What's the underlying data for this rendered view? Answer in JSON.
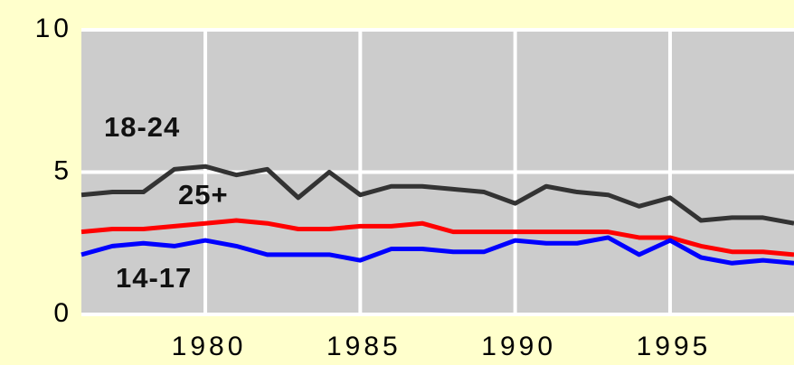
{
  "chart_data": {
    "type": "line",
    "x": [
      1976,
      1977,
      1978,
      1979,
      1980,
      1981,
      1982,
      1983,
      1984,
      1985,
      1986,
      1987,
      1988,
      1989,
      1990,
      1991,
      1992,
      1993,
      1994,
      1995,
      1996,
      1997,
      1998,
      1999
    ],
    "series": [
      {
        "name": "18-24",
        "color": "#333333",
        "values": [
          4.2,
          4.3,
          4.3,
          5.1,
          5.2,
          4.9,
          5.1,
          4.1,
          5.0,
          4.2,
          4.5,
          4.5,
          4.4,
          4.3,
          3.9,
          4.5,
          4.3,
          4.2,
          3.8,
          4.1,
          3.3,
          3.4,
          3.4,
          3.2
        ]
      },
      {
        "name": "25+",
        "color": "#ff0000",
        "values": [
          2.9,
          3.0,
          3.0,
          3.1,
          3.2,
          3.3,
          3.2,
          3.0,
          3.0,
          3.1,
          3.1,
          3.2,
          2.9,
          2.9,
          2.9,
          2.9,
          2.9,
          2.9,
          2.7,
          2.7,
          2.4,
          2.2,
          2.2,
          2.1
        ]
      },
      {
        "name": "14-17",
        "color": "#0000ff",
        "values": [
          2.1,
          2.4,
          2.5,
          2.4,
          2.6,
          2.4,
          2.1,
          2.1,
          2.1,
          1.9,
          2.3,
          2.3,
          2.2,
          2.2,
          2.6,
          2.5,
          2.5,
          2.7,
          2.1,
          2.6,
          2.0,
          1.8,
          1.9,
          1.8
        ]
      }
    ],
    "xlim": [
      1976,
      1999
    ],
    "xticks": [
      1980,
      1985,
      1990,
      1995
    ],
    "ylim": [
      0,
      10
    ],
    "yticks": [
      0,
      5,
      10
    ],
    "grid": true
  }
}
